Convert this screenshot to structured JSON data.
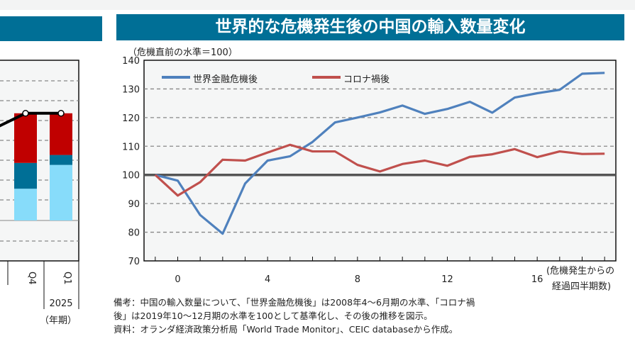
{
  "title": "世界的な危機発生後の中国の輸入数量変化",
  "notes": [
    "備考：中国の輸入数量について、「世界金融危機後」は2008年4～6月期の水準、「コロナ禍",
    "後」は2019年10～12月期の水準を100として基準化し、その後の推移を図示。",
    "資料：オランダ経済政策分析局「World Trade Monitor」、CEIC databaseから作成。"
  ],
  "chart_data": [
    {
      "type": "line",
      "title": "世界的な危機発生後の中国の輸入数量変化",
      "ylabel": "（危機直前の水準＝100）",
      "xlabel": [
        "(危機発生からの",
        "経過四半期数)"
      ],
      "ylim": [
        70,
        140
      ],
      "yticks": [
        70,
        80,
        90,
        100,
        110,
        120,
        130,
        140
      ],
      "xlim": [
        -1.5,
        19.5
      ],
      "xticks": [
        0,
        4,
        8,
        12,
        16
      ],
      "grid": "horizontal dashed",
      "reference_line": 100,
      "legend": "top-left",
      "x": [
        -1,
        0,
        1,
        2,
        3,
        4,
        5,
        6,
        7,
        8,
        9,
        10,
        11,
        12,
        13,
        14,
        15,
        16,
        17,
        18,
        19
      ],
      "series": [
        {
          "name": "世界金融危機後",
          "color": "#4f81bd",
          "values": [
            100,
            98,
            86,
            79.5,
            97,
            105,
            106.5,
            111.5,
            118.3,
            120,
            121.8,
            124.2,
            121.3,
            123,
            125.5,
            121.7,
            127,
            128.5,
            129.7,
            135.3,
            135.6
          ]
        },
        {
          "name": "コロナ禍後",
          "color": "#c0504d",
          "values": [
            100,
            92.8,
            97.5,
            105.3,
            105,
            107.8,
            110.5,
            108.2,
            108.2,
            103.5,
            101.2,
            103.8,
            105,
            103.2,
            106.3,
            107.2,
            109,
            106.2,
            108.2,
            107.3,
            107.4
          ]
        }
      ]
    },
    {
      "type": "bar",
      "stacked": true,
      "partial": true,
      "categories": [
        "Q4",
        "Q1"
      ],
      "year_label": "2025",
      "xlabel": "（年期）",
      "series": [
        {
          "color": "#87dcfa",
          "values": [
            1.6,
            2.8
          ]
        },
        {
          "color": "#006f96",
          "values": [
            1.3,
            0.5
          ]
        },
        {
          "color": "#c00000",
          "values": [
            2.5,
            2.1
          ]
        }
      ],
      "line": {
        "color": "#000000",
        "values": [
          5.4,
          5.4
        ]
      }
    }
  ]
}
